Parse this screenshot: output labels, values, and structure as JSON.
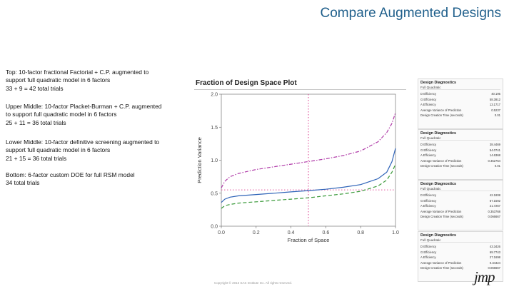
{
  "slide": {
    "title": "Compare Augmented Designs",
    "descriptions": [
      [
        "Top: 10-factor fractional Factorial + C.P. augmented to",
        "support full quadratic model in 6 factors",
        "33 + 9 = 42 total trials"
      ],
      [
        "Upper Middle: 10-factor Placket-Burman + C.P. augmented",
        "to support full quadratic model in 6 factors",
        "25 + 11 = 36 total trials"
      ],
      [
        "Lower Middle: 10-factor definitive screening augmented to",
        "support full quadratic model in 6 factors",
        "21 + 15 = 36 total trials"
      ],
      [
        "Bottom: 6-factor custom DOE for full RSM model",
        "34 total trials"
      ]
    ],
    "copyright": "Copyright © 2013 SAS Institute Inc. All rights reserved.",
    "logo": "jmp"
  },
  "plot": {
    "title": "Fraction of Design Space Plot"
  },
  "chart_data": {
    "type": "line",
    "title": "Fraction of Design Space Plot",
    "xlabel": "Fraction of Space",
    "ylabel": "Prediction Variance",
    "xlim": [
      0,
      1
    ],
    "ylim": [
      0,
      2
    ],
    "xticks": [
      "0.0",
      "0.2",
      "0.4",
      "0.6",
      "0.8",
      "1.0"
    ],
    "yticks": [
      "0.0",
      "0.5",
      "1.0",
      "1.5",
      "2.0"
    ],
    "grid": false,
    "reference_lines": {
      "x": 0.5,
      "y": 0.55,
      "color": "#e0529c"
    },
    "x": [
      0,
      0.02,
      0.05,
      0.1,
      0.2,
      0.3,
      0.4,
      0.5,
      0.6,
      0.7,
      0.8,
      0.9,
      0.95,
      0.98,
      1.0
    ],
    "series": [
      {
        "color": "#b03aa8",
        "dash": "dashdot",
        "values": [
          0.58,
          0.68,
          0.75,
          0.8,
          0.86,
          0.9,
          0.94,
          0.98,
          1.02,
          1.07,
          1.14,
          1.28,
          1.42,
          1.56,
          1.72
        ]
      },
      {
        "color": "#2e63b8",
        "dash": "solid",
        "values": [
          0.36,
          0.41,
          0.44,
          0.46,
          0.48,
          0.5,
          0.52,
          0.54,
          0.56,
          0.59,
          0.63,
          0.72,
          0.82,
          0.98,
          1.18
        ]
      },
      {
        "color": "#3a9a3a",
        "dash": "dashed",
        "values": [
          0.27,
          0.31,
          0.33,
          0.35,
          0.37,
          0.39,
          0.41,
          0.43,
          0.46,
          0.49,
          0.53,
          0.61,
          0.7,
          0.82,
          0.94
        ]
      }
    ]
  },
  "diagnostics": [
    {
      "title": "Design Diagnostics",
      "subtitle": "Full Quadratic",
      "rows": [
        {
          "label": "D Efficiency",
          "value": "40.195"
        },
        {
          "label": "G Efficiency",
          "value": "58.3912"
        },
        {
          "label": "A Efficiency",
          "value": "13.1717"
        },
        {
          "label": "Average Variance of Prediction",
          "value": "0.5237"
        },
        {
          "label": "Design Creation Time (seconds)",
          "value": "0.01"
        }
      ]
    },
    {
      "title": "Design Diagnostics",
      "subtitle": "Full Quadratic",
      "rows": [
        {
          "label": "D Efficiency",
          "value": "38.4469"
        },
        {
          "label": "G Efficiency",
          "value": "54.0741"
        },
        {
          "label": "A Efficiency",
          "value": "14.6368"
        },
        {
          "label": "Average Variance of Prediction",
          "value": "0.452764"
        },
        {
          "label": "Design Creation Time (seconds)",
          "value": "0.01"
        }
      ]
    },
    {
      "title": "Design Diagnostics",
      "subtitle": "Full Quadratic",
      "rows": [
        {
          "label": "D Efficiency",
          "value": "42.1808"
        },
        {
          "label": "G Efficiency",
          "value": "67.1592"
        },
        {
          "label": "A Efficiency",
          "value": "21.7267"
        },
        {
          "label": "Average Variance of Prediction",
          "value": "0.353768"
        },
        {
          "label": "Design Creation Time (seconds)",
          "value": "0.066667"
        }
      ]
    },
    {
      "title": "Design Diagnostics",
      "subtitle": "Full Quadratic",
      "rows": [
        {
          "label": "D Efficiency",
          "value": "43.3426"
        },
        {
          "label": "G Efficiency",
          "value": "69.7743"
        },
        {
          "label": "A Efficiency",
          "value": "27.1698"
        },
        {
          "label": "Average Variance of Prediction",
          "value": "0.34424"
        },
        {
          "label": "Design Creation Time (seconds)",
          "value": "0.066667"
        }
      ]
    }
  ]
}
